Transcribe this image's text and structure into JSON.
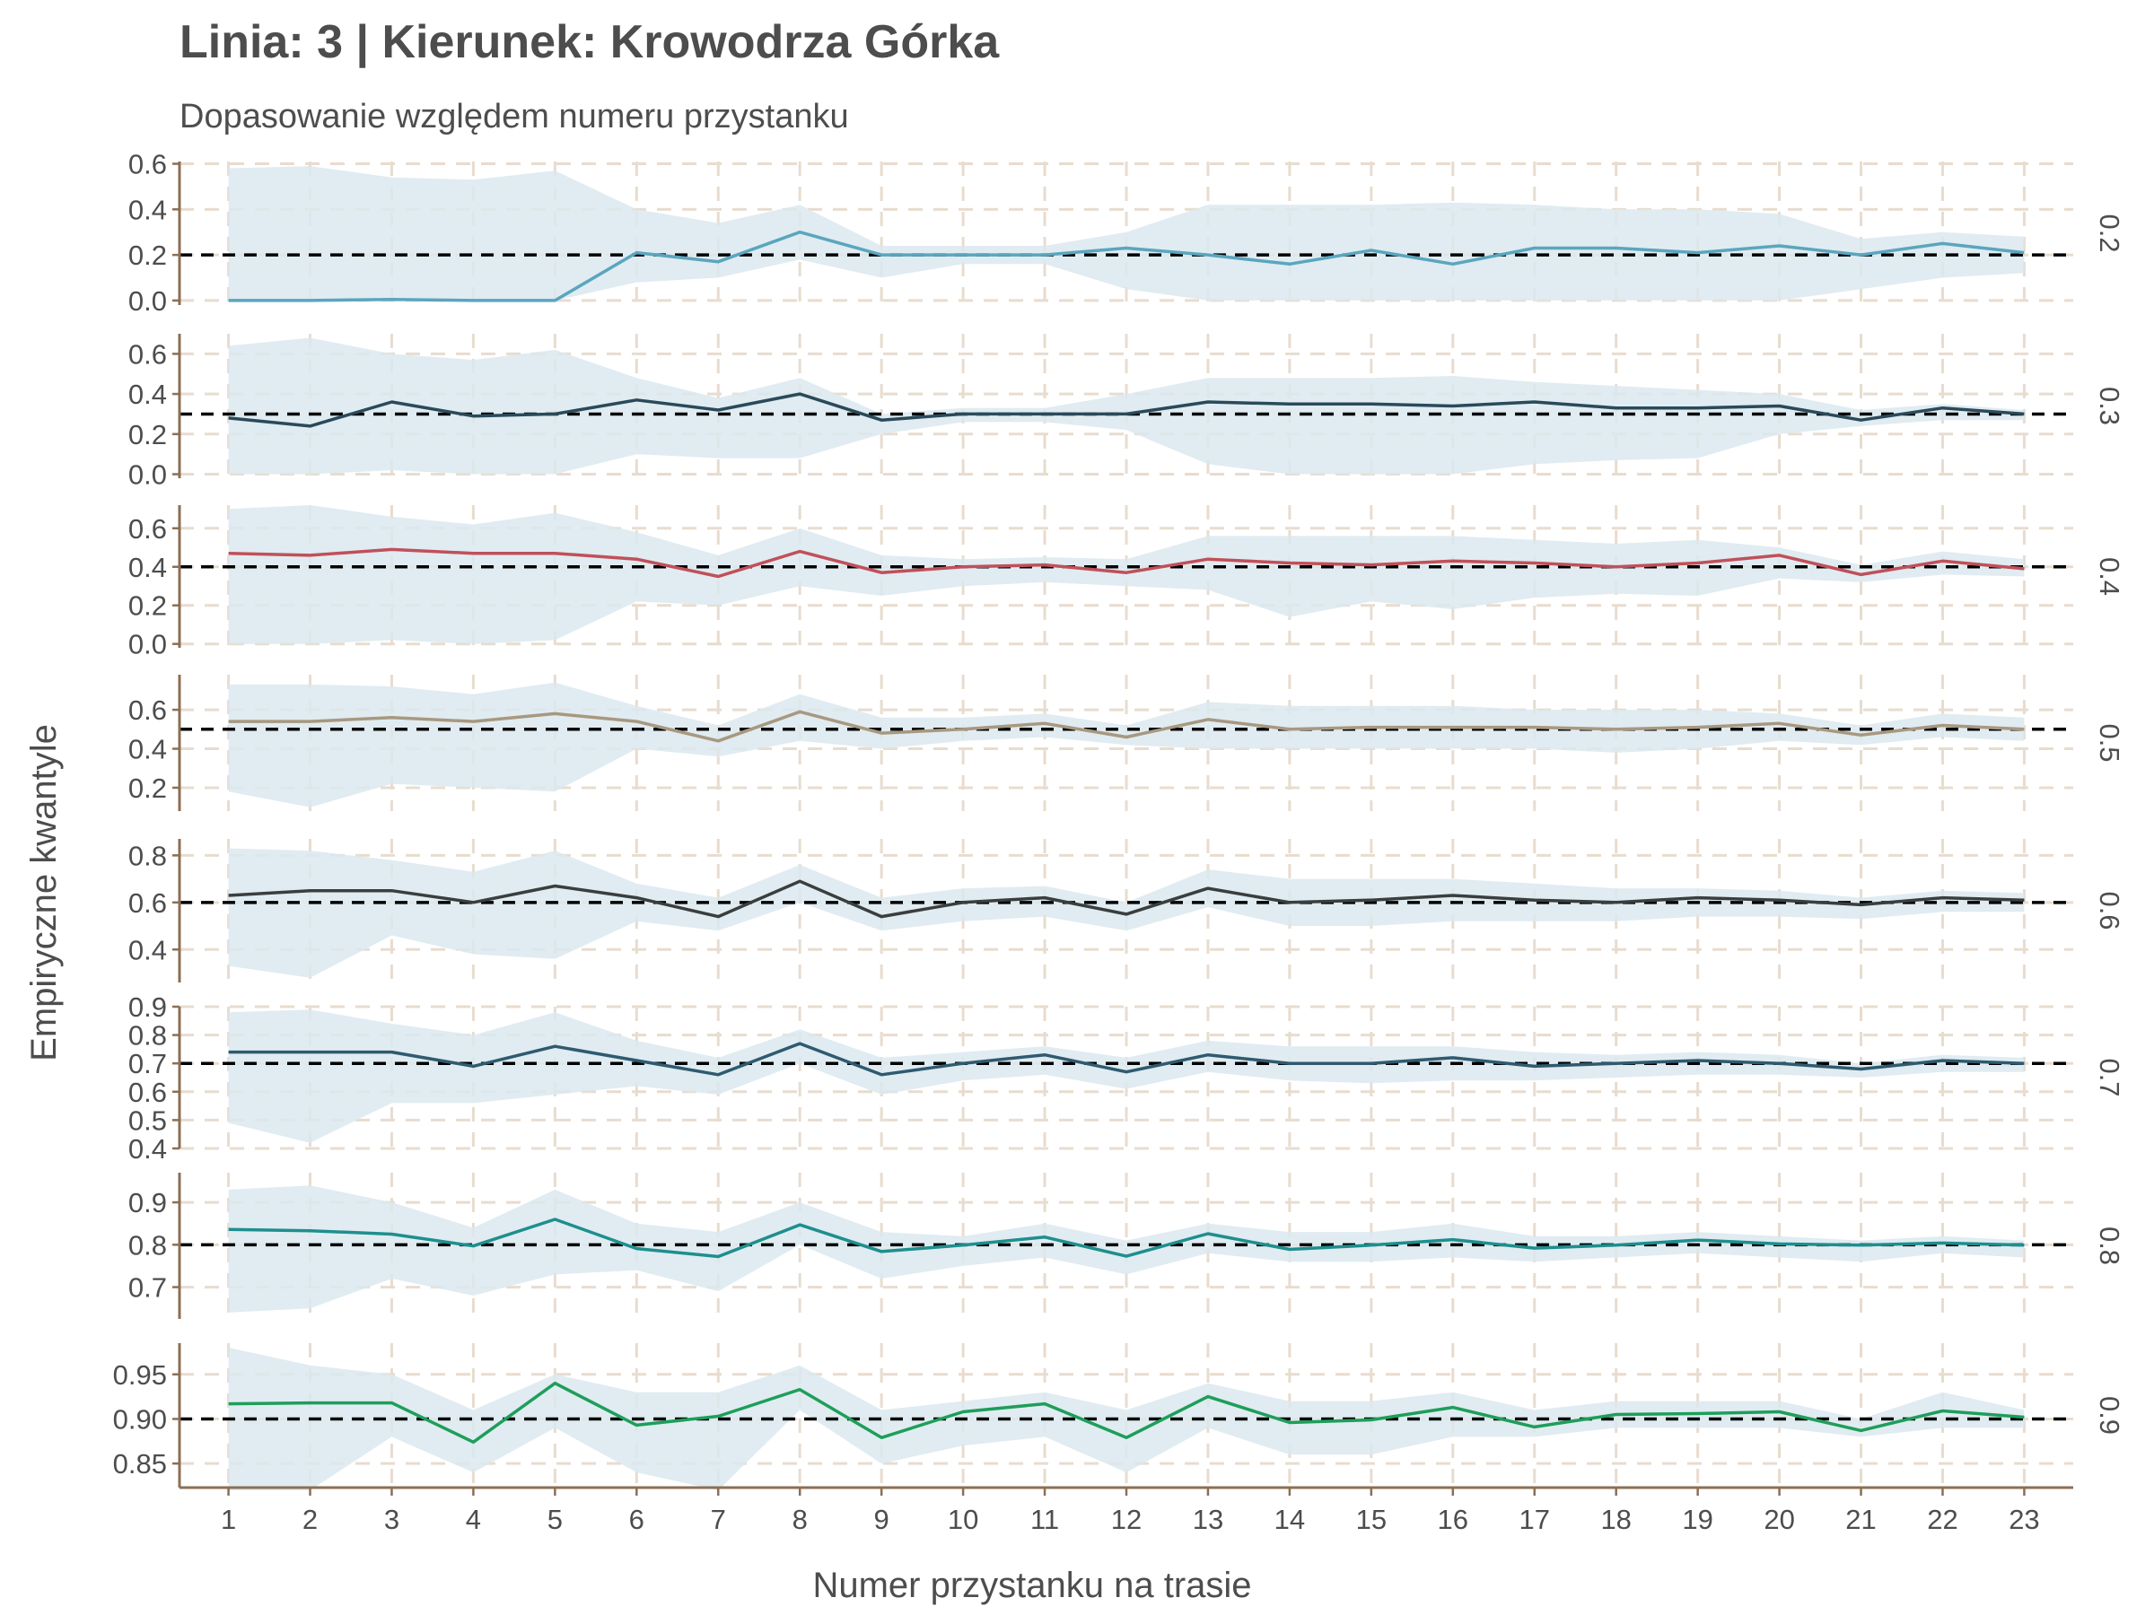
{
  "chart_data": {
    "type": "line",
    "title": "Linia: 3 | Kierunek: Krowodrza Górka",
    "subtitle": "Dopasowanie względem numeru przystanku",
    "xlabel": "Numer przystanku na trasie",
    "ylabel": "Empiryczne kwantyle",
    "x": [
      1,
      2,
      3,
      4,
      5,
      6,
      7,
      8,
      9,
      10,
      11,
      12,
      13,
      14,
      15,
      16,
      17,
      18,
      19,
      20,
      21,
      22,
      23
    ],
    "xlim": [
      0.4,
      23.6
    ],
    "grid": true,
    "band_color": "#dbe9ee",
    "panels": [
      {
        "label": "0.2",
        "reference": 0.2,
        "color": "#5ba5be",
        "ylim": [
          -0.02,
          0.61
        ],
        "yticks": [
          "0.0",
          "0.2",
          "0.4",
          "0.6"
        ],
        "ytick_values": [
          0,
          0.2,
          0.4,
          0.6
        ],
        "values": [
          0.0,
          0.0,
          0.005,
          0.0,
          0.0,
          0.21,
          0.17,
          0.3,
          0.2,
          0.2,
          0.2,
          0.23,
          0.2,
          0.16,
          0.22,
          0.16,
          0.23,
          0.23,
          0.21,
          0.24,
          0.2,
          0.25,
          0.21
        ],
        "lower": [
          0.0,
          0.0,
          0.0,
          0.0,
          0.0,
          0.08,
          0.1,
          0.18,
          0.1,
          0.16,
          0.16,
          0.05,
          0.0,
          0.0,
          0.0,
          0.0,
          0.0,
          0.0,
          0.0,
          0.0,
          0.05,
          0.1,
          0.12
        ],
        "upper": [
          0.58,
          0.59,
          0.54,
          0.53,
          0.57,
          0.4,
          0.34,
          0.42,
          0.24,
          0.24,
          0.24,
          0.3,
          0.42,
          0.42,
          0.42,
          0.43,
          0.42,
          0.4,
          0.4,
          0.38,
          0.27,
          0.3,
          0.28
        ]
      },
      {
        "label": "0.3",
        "reference": 0.3,
        "color": "#2a4a5a",
        "ylim": [
          -0.02,
          0.7
        ],
        "yticks": [
          "0.0",
          "0.2",
          "0.4",
          "0.6"
        ],
        "ytick_values": [
          0,
          0.2,
          0.4,
          0.6
        ],
        "values": [
          0.28,
          0.24,
          0.36,
          0.29,
          0.3,
          0.37,
          0.32,
          0.4,
          0.27,
          0.3,
          0.3,
          0.3,
          0.36,
          0.35,
          0.35,
          0.34,
          0.36,
          0.33,
          0.33,
          0.34,
          0.27,
          0.33,
          0.3
        ],
        "lower": [
          0.0,
          0.0,
          0.02,
          0.0,
          0.0,
          0.1,
          0.08,
          0.08,
          0.2,
          0.26,
          0.26,
          0.22,
          0.05,
          0.0,
          0.0,
          0.0,
          0.05,
          0.07,
          0.08,
          0.2,
          0.24,
          0.27,
          0.27
        ],
        "upper": [
          0.64,
          0.68,
          0.6,
          0.57,
          0.62,
          0.48,
          0.38,
          0.48,
          0.3,
          0.33,
          0.33,
          0.4,
          0.48,
          0.48,
          0.48,
          0.49,
          0.46,
          0.44,
          0.42,
          0.4,
          0.32,
          0.35,
          0.32
        ]
      },
      {
        "label": "0.4",
        "reference": 0.4,
        "color": "#c0505a",
        "ylim": [
          -0.02,
          0.72
        ],
        "yticks": [
          "0.0",
          "0.2",
          "0.4",
          "0.6"
        ],
        "ytick_values": [
          0,
          0.2,
          0.4,
          0.6
        ],
        "values": [
          0.47,
          0.46,
          0.49,
          0.47,
          0.47,
          0.44,
          0.35,
          0.48,
          0.37,
          0.4,
          0.41,
          0.37,
          0.44,
          0.42,
          0.41,
          0.43,
          0.42,
          0.4,
          0.42,
          0.46,
          0.36,
          0.43,
          0.39
        ],
        "lower": [
          0.0,
          0.0,
          0.02,
          0.0,
          0.02,
          0.22,
          0.2,
          0.3,
          0.25,
          0.3,
          0.32,
          0.3,
          0.28,
          0.14,
          0.22,
          0.18,
          0.24,
          0.26,
          0.25,
          0.34,
          0.32,
          0.36,
          0.35
        ],
        "upper": [
          0.7,
          0.72,
          0.66,
          0.62,
          0.68,
          0.58,
          0.46,
          0.6,
          0.46,
          0.44,
          0.45,
          0.44,
          0.56,
          0.56,
          0.56,
          0.56,
          0.54,
          0.52,
          0.54,
          0.5,
          0.41,
          0.48,
          0.44
        ]
      },
      {
        "label": "0.5",
        "reference": 0.5,
        "color": "#a89880",
        "ylim": [
          0.08,
          0.78
        ],
        "yticks": [
          "0.2",
          "0.4",
          "0.6"
        ],
        "ytick_values": [
          0.2,
          0.4,
          0.6
        ],
        "values": [
          0.54,
          0.54,
          0.56,
          0.54,
          0.58,
          0.54,
          0.44,
          0.59,
          0.48,
          0.5,
          0.53,
          0.46,
          0.55,
          0.5,
          0.51,
          0.51,
          0.51,
          0.5,
          0.51,
          0.53,
          0.47,
          0.52,
          0.5
        ],
        "lower": [
          0.18,
          0.1,
          0.22,
          0.2,
          0.18,
          0.4,
          0.36,
          0.44,
          0.4,
          0.44,
          0.46,
          0.42,
          0.4,
          0.4,
          0.4,
          0.4,
          0.4,
          0.38,
          0.4,
          0.44,
          0.42,
          0.46,
          0.44
        ],
        "upper": [
          0.73,
          0.73,
          0.72,
          0.68,
          0.74,
          0.62,
          0.52,
          0.68,
          0.56,
          0.56,
          0.58,
          0.52,
          0.64,
          0.62,
          0.62,
          0.62,
          0.6,
          0.6,
          0.6,
          0.58,
          0.52,
          0.58,
          0.56
        ]
      },
      {
        "label": "0.6",
        "reference": 0.6,
        "color": "#3a3e3e",
        "ylim": [
          0.26,
          0.87
        ],
        "yticks": [
          "0.4",
          "0.6",
          "0.8"
        ],
        "ytick_values": [
          0.4,
          0.6,
          0.8
        ],
        "values": [
          0.63,
          0.65,
          0.65,
          0.6,
          0.67,
          0.62,
          0.54,
          0.69,
          0.54,
          0.6,
          0.62,
          0.55,
          0.66,
          0.6,
          0.61,
          0.63,
          0.61,
          0.6,
          0.62,
          0.61,
          0.59,
          0.62,
          0.61
        ],
        "lower": [
          0.33,
          0.28,
          0.46,
          0.38,
          0.36,
          0.52,
          0.48,
          0.6,
          0.48,
          0.52,
          0.54,
          0.48,
          0.58,
          0.5,
          0.5,
          0.52,
          0.52,
          0.52,
          0.54,
          0.54,
          0.53,
          0.56,
          0.56
        ],
        "upper": [
          0.83,
          0.82,
          0.78,
          0.73,
          0.82,
          0.68,
          0.62,
          0.76,
          0.62,
          0.66,
          0.67,
          0.6,
          0.74,
          0.7,
          0.7,
          0.7,
          0.68,
          0.66,
          0.66,
          0.65,
          0.62,
          0.65,
          0.64
        ]
      },
      {
        "label": "0.7",
        "reference": 0.7,
        "color": "#2f5a70",
        "ylim": [
          0.4,
          0.9
        ],
        "yticks": [
          "0.4",
          "0.5",
          "0.6",
          "0.7",
          "0.8",
          "0.9"
        ],
        "ytick_values": [
          0.4,
          0.5,
          0.6,
          0.7,
          0.8,
          0.9
        ],
        "values": [
          0.74,
          0.74,
          0.74,
          0.69,
          0.76,
          0.71,
          0.66,
          0.77,
          0.66,
          0.7,
          0.73,
          0.67,
          0.73,
          0.7,
          0.7,
          0.72,
          0.69,
          0.7,
          0.71,
          0.7,
          0.68,
          0.71,
          0.7
        ],
        "lower": [
          0.49,
          0.42,
          0.56,
          0.56,
          0.59,
          0.62,
          0.59,
          0.7,
          0.59,
          0.64,
          0.66,
          0.61,
          0.67,
          0.64,
          0.63,
          0.64,
          0.64,
          0.65,
          0.66,
          0.66,
          0.65,
          0.67,
          0.67
        ],
        "upper": [
          0.88,
          0.89,
          0.84,
          0.8,
          0.88,
          0.78,
          0.72,
          0.82,
          0.72,
          0.74,
          0.76,
          0.72,
          0.78,
          0.76,
          0.76,
          0.76,
          0.74,
          0.73,
          0.74,
          0.73,
          0.7,
          0.73,
          0.72
        ]
      },
      {
        "label": "0.8",
        "reference": 0.8,
        "color": "#1e8e8e",
        "ylim": [
          0.625,
          0.97
        ],
        "yticks": [
          "0.7",
          "0.8",
          "0.9"
        ],
        "ytick_values": [
          0.7,
          0.8,
          0.9
        ],
        "values": [
          0.836,
          0.833,
          0.825,
          0.797,
          0.86,
          0.791,
          0.772,
          0.847,
          0.784,
          0.799,
          0.818,
          0.773,
          0.826,
          0.789,
          0.799,
          0.812,
          0.792,
          0.799,
          0.811,
          0.802,
          0.799,
          0.804,
          0.799
        ],
        "lower": [
          0.64,
          0.65,
          0.72,
          0.68,
          0.73,
          0.74,
          0.69,
          0.8,
          0.72,
          0.75,
          0.77,
          0.73,
          0.78,
          0.76,
          0.76,
          0.77,
          0.76,
          0.77,
          0.78,
          0.77,
          0.76,
          0.78,
          0.77
        ],
        "upper": [
          0.93,
          0.94,
          0.9,
          0.84,
          0.93,
          0.85,
          0.83,
          0.9,
          0.83,
          0.82,
          0.85,
          0.81,
          0.85,
          0.83,
          0.83,
          0.85,
          0.82,
          0.82,
          0.83,
          0.82,
          0.81,
          0.82,
          0.81
        ]
      },
      {
        "label": "0.9",
        "reference": 0.9,
        "color": "#1e9e5a",
        "ylim": [
          0.823,
          0.985
        ],
        "yticks": [
          "0.85",
          "0.90",
          "0.95"
        ],
        "ytick_values": [
          0.85,
          0.9,
          0.95
        ],
        "values": [
          0.917,
          0.918,
          0.918,
          0.874,
          0.94,
          0.893,
          0.903,
          0.933,
          0.879,
          0.908,
          0.917,
          0.879,
          0.925,
          0.896,
          0.899,
          0.913,
          0.891,
          0.905,
          0.906,
          0.908,
          0.887,
          0.909,
          0.902
        ],
        "lower": [
          0.82,
          0.82,
          0.88,
          0.84,
          0.89,
          0.84,
          0.82,
          0.91,
          0.85,
          0.87,
          0.88,
          0.84,
          0.89,
          0.86,
          0.86,
          0.88,
          0.88,
          0.89,
          0.89,
          0.89,
          0.88,
          0.89,
          0.89
        ],
        "upper": [
          0.98,
          0.96,
          0.95,
          0.91,
          0.95,
          0.93,
          0.93,
          0.96,
          0.91,
          0.92,
          0.93,
          0.91,
          0.94,
          0.92,
          0.92,
          0.93,
          0.91,
          0.92,
          0.92,
          0.92,
          0.9,
          0.93,
          0.91
        ]
      }
    ]
  }
}
